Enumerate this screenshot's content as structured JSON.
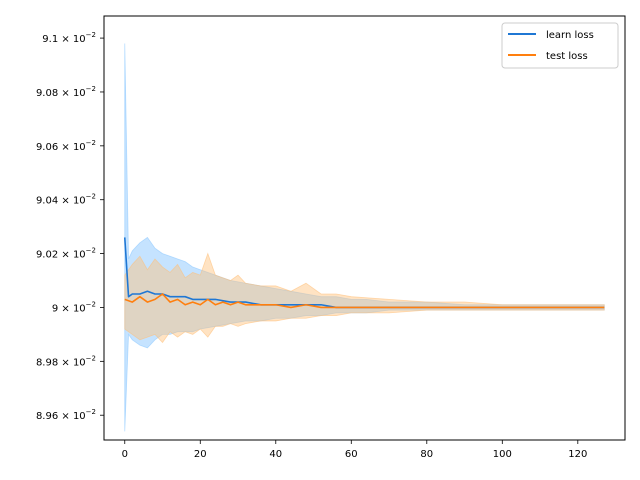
{
  "chart_data": {
    "type": "line",
    "title": "",
    "xlabel": "",
    "ylabel": "",
    "xlim": [
      -5.5,
      132.5
    ],
    "ylim": [
      0.089508,
      0.091082
    ],
    "grid": false,
    "legend_position": "top-right",
    "x_ticks": [
      0,
      20,
      40,
      60,
      80,
      100,
      120
    ],
    "x_tick_labels": [
      "0",
      "20",
      "40",
      "60",
      "80",
      "100",
      "120"
    ],
    "y_ticks": [
      {
        "value": 0.0896,
        "mantissa": "8.96"
      },
      {
        "value": 0.0898,
        "mantissa": "8.98"
      },
      {
        "value": 0.09,
        "mantissa": "9"
      },
      {
        "value": 0.0902,
        "mantissa": "9.02"
      },
      {
        "value": 0.0904,
        "mantissa": "9.04"
      },
      {
        "value": 0.0906,
        "mantissa": "9.06"
      },
      {
        "value": 0.0908,
        "mantissa": "9.08"
      },
      {
        "value": 0.091,
        "mantissa": "9.1"
      }
    ],
    "y_tick_base": "10",
    "y_tick_exponent": "−2",
    "series": [
      {
        "name": "learn loss",
        "color": "#1f77d4",
        "band_color": "#8cc8ff",
        "x": [
          0,
          1,
          2,
          4,
          6,
          8,
          10,
          12,
          14,
          16,
          18,
          20,
          24,
          28,
          32,
          36,
          40,
          44,
          48,
          52,
          56,
          60,
          64,
          70,
          80,
          90,
          100,
          110,
          120,
          127
        ],
        "y": [
          0.09026,
          0.09004,
          0.09005,
          0.09005,
          0.09006,
          0.09005,
          0.09005,
          0.09004,
          0.09004,
          0.09004,
          0.09003,
          0.09003,
          0.09003,
          0.09002,
          0.09002,
          0.09001,
          0.09001,
          0.09001,
          0.09001,
          0.09001,
          0.09,
          0.09,
          0.09,
          0.09,
          0.09,
          0.09,
          0.09,
          0.09,
          0.09,
          0.09
        ],
        "upper": [
          0.09098,
          0.09018,
          0.09021,
          0.09024,
          0.09026,
          0.09022,
          0.0902,
          0.09019,
          0.09018,
          0.09017,
          0.09015,
          0.09014,
          0.09012,
          0.0901,
          0.09009,
          0.09008,
          0.09007,
          0.09006,
          0.09005,
          0.09004,
          0.09004,
          0.09003,
          0.09003,
          0.09002,
          0.09002,
          0.09001,
          0.09001,
          0.09001,
          0.09001,
          0.09001
        ],
        "lower": [
          0.08954,
          0.0899,
          0.08988,
          0.08986,
          0.08985,
          0.08988,
          0.0899,
          0.0899,
          0.08991,
          0.08991,
          0.08991,
          0.08992,
          0.08993,
          0.08994,
          0.08995,
          0.08995,
          0.08996,
          0.08996,
          0.08997,
          0.08997,
          0.08998,
          0.08998,
          0.08998,
          0.08999,
          0.08999,
          0.08999,
          0.08999,
          0.08999,
          0.08999,
          0.08999
        ]
      },
      {
        "name": "test loss",
        "color": "#ff7f0e",
        "band_color": "#ffc07a",
        "x": [
          0,
          2,
          4,
          6,
          8,
          10,
          12,
          14,
          16,
          18,
          20,
          22,
          24,
          26,
          28,
          30,
          32,
          36,
          40,
          44,
          48,
          52,
          56,
          60,
          70,
          80,
          90,
          100,
          110,
          120,
          127
        ],
        "y": [
          0.09003,
          0.09002,
          0.09004,
          0.09002,
          0.09003,
          0.09005,
          0.09002,
          0.09003,
          0.09001,
          0.09002,
          0.09001,
          0.09003,
          0.09001,
          0.09002,
          0.09001,
          0.09002,
          0.09001,
          0.09001,
          0.09001,
          0.09,
          0.09001,
          0.09,
          0.09,
          0.09,
          0.09,
          0.09,
          0.09,
          0.09,
          0.09,
          0.09,
          0.09
        ],
        "upper": [
          0.09012,
          0.09016,
          0.09019,
          0.09014,
          0.09018,
          0.09015,
          0.09013,
          0.09016,
          0.09011,
          0.09013,
          0.09012,
          0.0902,
          0.09012,
          0.09011,
          0.0901,
          0.09012,
          0.09009,
          0.09008,
          0.09008,
          0.09006,
          0.09009,
          0.09005,
          0.09005,
          0.09004,
          0.09003,
          0.09002,
          0.09002,
          0.09001,
          0.09001,
          0.09001,
          0.09001
        ],
        "lower": [
          0.08992,
          0.0899,
          0.08988,
          0.08989,
          0.0899,
          0.08987,
          0.08991,
          0.08989,
          0.08991,
          0.0899,
          0.08992,
          0.08989,
          0.08993,
          0.08993,
          0.08994,
          0.08993,
          0.08994,
          0.08995,
          0.08995,
          0.08996,
          0.08996,
          0.08997,
          0.08997,
          0.08998,
          0.08998,
          0.08999,
          0.08999,
          0.08999,
          0.08999,
          0.08999,
          0.08999
        ]
      }
    ]
  }
}
